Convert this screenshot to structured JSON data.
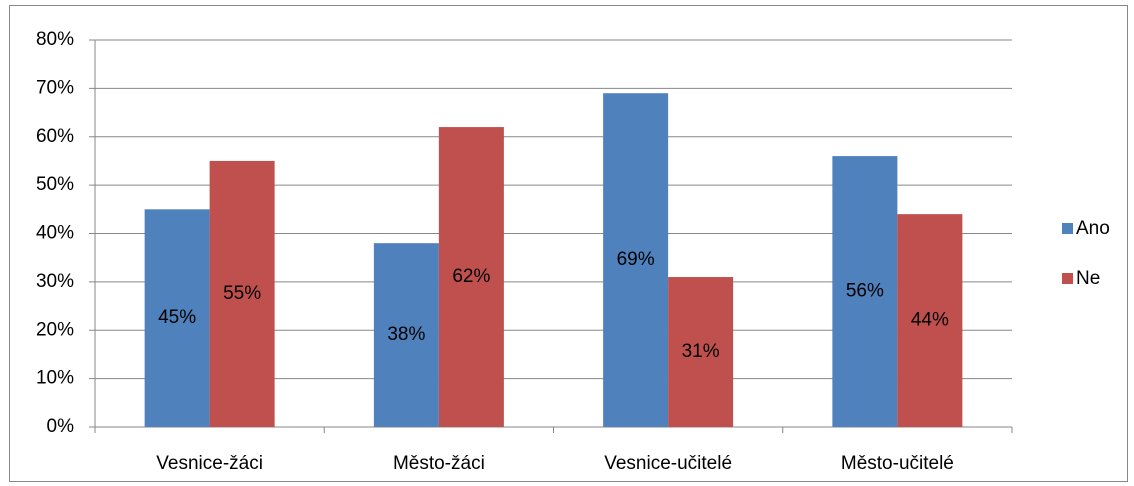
{
  "chart_data": {
    "type": "bar",
    "categories": [
      "Vesnice-žáci",
      "Město-žáci",
      "Vesnice-učitelé",
      "Město-učitelé"
    ],
    "series": [
      {
        "name": "Ano",
        "color": "#4f81bd",
        "values": [
          45,
          38,
          69,
          56
        ],
        "value_labels": [
          "45%",
          "38%",
          "69%",
          "56%"
        ]
      },
      {
        "name": "Ne",
        "color": "#c0504d",
        "values": [
          55,
          62,
          31,
          44
        ],
        "value_labels": [
          "55%",
          "62%",
          "31%",
          "44%"
        ]
      }
    ],
    "ylim": [
      0,
      80
    ],
    "yticks": [
      {
        "value": 0,
        "label": "0%"
      },
      {
        "value": 10,
        "label": "10%"
      },
      {
        "value": 20,
        "label": "20%"
      },
      {
        "value": 30,
        "label": "30%"
      },
      {
        "value": 40,
        "label": "40%"
      },
      {
        "value": 50,
        "label": "50%"
      },
      {
        "value": 60,
        "label": "60%"
      },
      {
        "value": 70,
        "label": "70%"
      },
      {
        "value": 80,
        "label": "80%"
      }
    ],
    "grid": true,
    "legend": "right"
  }
}
